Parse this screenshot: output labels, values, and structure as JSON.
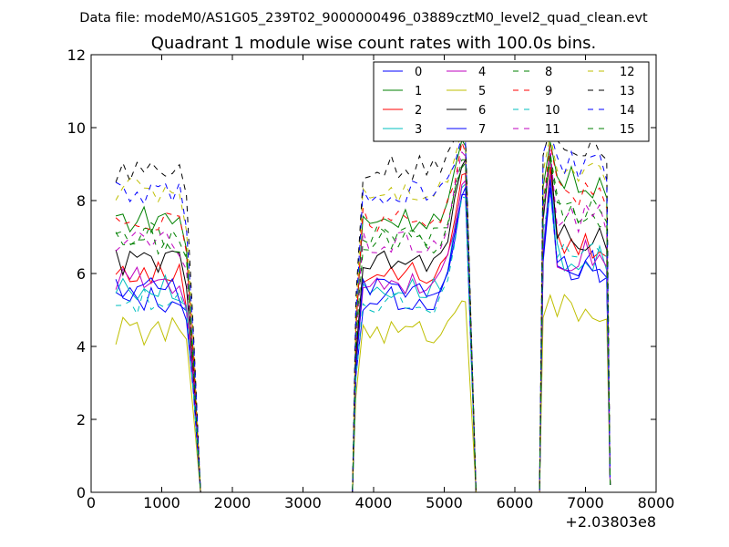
{
  "figure": {
    "suptitle": "Data file: modeM0/AS1G05_239T02_9000000496_03889cztM0_level2_quad_clean.evt"
  },
  "chart_data": {
    "type": "line",
    "title": "Quadrant 1 module wise count rates with 100.0s bins.",
    "xlabel": "",
    "ylabel": "",
    "x_offset_label": "+2.03803e8",
    "xlim": [
      0,
      8000
    ],
    "ylim": [
      0,
      12
    ],
    "xticks": [
      0,
      1000,
      2000,
      3000,
      4000,
      5000,
      6000,
      7000,
      8000
    ],
    "yticks": [
      0,
      2,
      4,
      6,
      8,
      10,
      12
    ],
    "grid": false,
    "legend_position": "top-right",
    "legend_columns": 4,
    "x": [
      350,
      450,
      550,
      650,
      750,
      850,
      950,
      1050,
      1150,
      1250,
      1350,
      1450,
      1550,
      3700,
      3750,
      3850,
      3950,
      4050,
      4150,
      4250,
      4350,
      4450,
      4550,
      4650,
      4750,
      4850,
      4950,
      5050,
      5150,
      5250,
      5300,
      5450,
      6350,
      6400,
      6500,
      6600,
      6700,
      6800,
      6900,
      7000,
      7100,
      7200,
      7300,
      7350
    ],
    "series": [
      {
        "name": "0",
        "color": "#0000ff",
        "dash": "solid",
        "base": 5.3,
        "peak": 8.6,
        "late": 6.2
      },
      {
        "name": "1",
        "color": "#008000",
        "dash": "solid",
        "base": 7.5,
        "peak": 10.0,
        "late": 8.5
      },
      {
        "name": "2",
        "color": "#ff0000",
        "dash": "solid",
        "base": 6.0,
        "peak": 9.2,
        "late": 6.8
      },
      {
        "name": "3",
        "color": "#00bfbf",
        "dash": "solid",
        "base": 5.6,
        "peak": 8.9,
        "late": 6.4
      },
      {
        "name": "4",
        "color": "#bf00bf",
        "dash": "solid",
        "base": 5.8,
        "peak": 9.0,
        "late": 6.5
      },
      {
        "name": "5",
        "color": "#bfbf00",
        "dash": "solid",
        "base": 4.4,
        "peak": 5.5,
        "late": 5.0
      },
      {
        "name": "6",
        "color": "#000000",
        "dash": "solid",
        "base": 6.3,
        "peak": 9.6,
        "late": 7.0
      },
      {
        "name": "7",
        "color": "#0000ff",
        "dash": "solid",
        "base": 5.6,
        "peak": 8.8,
        "late": 6.2
      },
      {
        "name": "8",
        "color": "#008000",
        "dash": "dashed",
        "base": 7.0,
        "peak": 9.5,
        "late": 7.7
      },
      {
        "name": "9",
        "color": "#ff0000",
        "dash": "dashed",
        "base": 7.5,
        "peak": 9.8,
        "late": 8.2
      },
      {
        "name": "10",
        "color": "#00bfbf",
        "dash": "dashed",
        "base": 5.2,
        "peak": 8.5,
        "late": 6.8
      },
      {
        "name": "11",
        "color": "#bf00bf",
        "dash": "dashed",
        "base": 6.8,
        "peak": 9.7,
        "late": 7.5
      },
      {
        "name": "12",
        "color": "#bfbf00",
        "dash": "dashed",
        "base": 8.3,
        "peak": 10.2,
        "late": 8.9
      },
      {
        "name": "13",
        "color": "#000000",
        "dash": "dashed",
        "base": 8.9,
        "peak": 10.3,
        "late": 9.6
      },
      {
        "name": "14",
        "color": "#0000ff",
        "dash": "dashed",
        "base": 8.2,
        "peak": 10.1,
        "late": 9.0
      },
      {
        "name": "15",
        "color": "#008000",
        "dash": "dashed",
        "base": 6.9,
        "peak": 9.6,
        "late": 7.8
      }
    ]
  }
}
